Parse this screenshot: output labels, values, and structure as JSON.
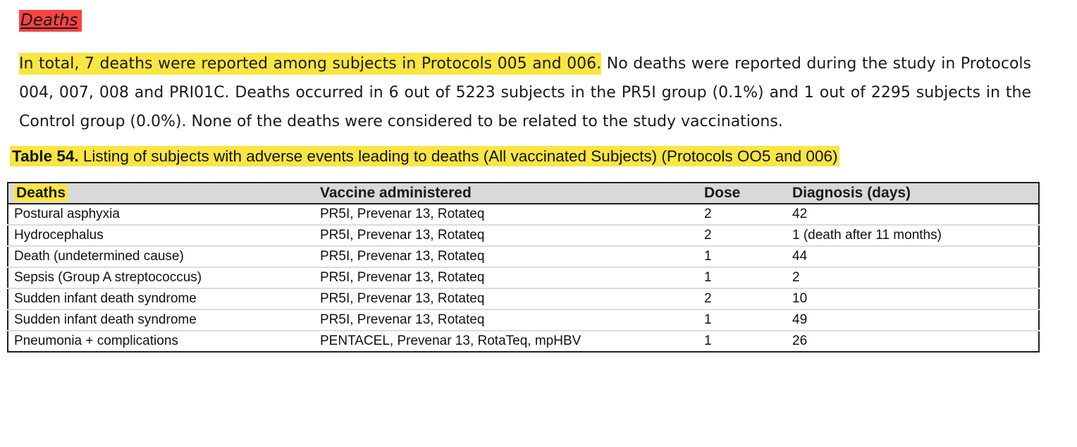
{
  "document": {
    "heading": "Deaths",
    "paragraph": {
      "highlighted_sentence": "In total, 7 deaths were reported among subjects in Protocols 005 and 006.",
      "remainder": " No deaths were reported during the study in Protocols 004, 007, 008 and PRI01C. Deaths occurred in 6 out of 5223 subjects in the PR5I group (0.1%) and 1 out of 2295 subjects in the Control group (0.0%). None of the deaths were considered to be related to the study vaccinations."
    },
    "table_caption": {
      "label": "Table 54.",
      "text": " Listing of subjects with adverse events leading to deaths (All vaccinated Subjects) (Protocols OO5 and 006)"
    },
    "table": {
      "columns": [
        "Deaths",
        "Vaccine administered",
        "Dose",
        "Diagnosis (days)"
      ],
      "rows": [
        [
          "Postural asphyxia",
          "PR5I, Prevenar 13, Rotateq",
          "2",
          "42"
        ],
        [
          "Hydrocephalus",
          "PR5I, Prevenar 13, Rotateq",
          "2",
          "1 (death after  11 months)"
        ],
        [
          "Death (undetermined cause)",
          "PR5I, Prevenar 13, Rotateq",
          "1",
          "44"
        ],
        [
          "Sepsis (Group A streptococcus)",
          "PR5I, Prevenar 13, Rotateq",
          "1",
          "2"
        ],
        [
          "Sudden infant death syndrome",
          "PR5I, Prevenar 13, Rotateq",
          "2",
          "10"
        ],
        [
          "Sudden infant death syndrome",
          "PR5I, Prevenar 13, Rotateq",
          "1",
          "49"
        ],
        [
          "Pneumonia + complications",
          "PENTACEL, Prevenar 13, RotaTeq, mpHBV",
          "1",
          "26"
        ]
      ]
    },
    "colors": {
      "highlight_yellow": "#fae542",
      "highlight_red": "#fb4343",
      "header_bg": "#d9d9d9"
    }
  }
}
